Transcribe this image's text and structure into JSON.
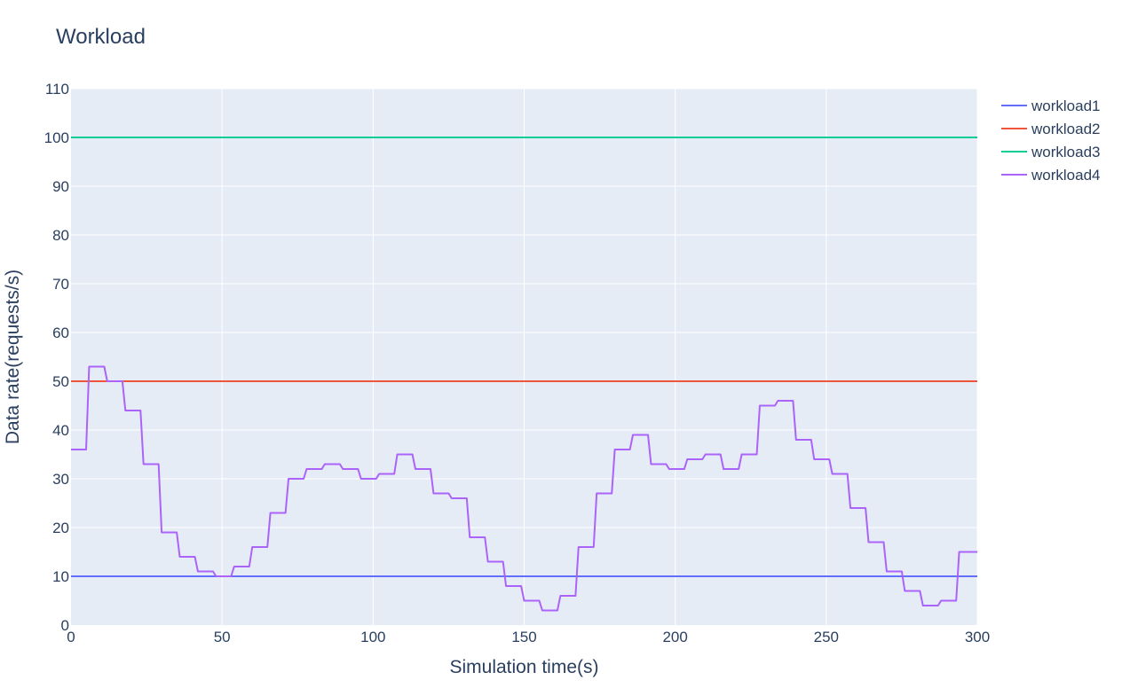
{
  "chart_data": {
    "type": "line",
    "title": "Workload",
    "xlabel": "Simulation time(s)",
    "ylabel": "Data rate(requests/s)",
    "xlim": [
      0,
      300
    ],
    "ylim": [
      0,
      110
    ],
    "x_ticks": [
      0,
      50,
      100,
      150,
      200,
      250,
      300
    ],
    "y_ticks": [
      0,
      10,
      20,
      30,
      40,
      50,
      60,
      70,
      80,
      90,
      100,
      110
    ],
    "grid": true,
    "legend_position": "top-right",
    "plot_background": "#e5ecf6",
    "series": [
      {
        "name": "workload1",
        "color": "#636efa",
        "x": [
          0,
          300
        ],
        "y": [
          10,
          10
        ]
      },
      {
        "name": "workload2",
        "color": "#ef553b",
        "x": [
          0,
          300
        ],
        "y": [
          50,
          50
        ]
      },
      {
        "name": "workload3",
        "color": "#00cc96",
        "x": [
          0,
          300
        ],
        "y": [
          100,
          100
        ]
      },
      {
        "name": "workload4",
        "color": "#ab63fa",
        "x": [
          0,
          5,
          6,
          11,
          12,
          17,
          18,
          23,
          24,
          29,
          30,
          35,
          36,
          41,
          42,
          47,
          48,
          53,
          54,
          59,
          60,
          65,
          66,
          71,
          72,
          77,
          78,
          83,
          84,
          89,
          90,
          95,
          96,
          101,
          102,
          107,
          108,
          113,
          114,
          119,
          120,
          125,
          126,
          131,
          132,
          137,
          138,
          143,
          144,
          149,
          150,
          155,
          156,
          161,
          162,
          167,
          168,
          173,
          174,
          179,
          180,
          185,
          186,
          191,
          192,
          197,
          198,
          203,
          204,
          209,
          210,
          215,
          216,
          221,
          222,
          227,
          228,
          233,
          234,
          239,
          240,
          245,
          246,
          251,
          252,
          257,
          258,
          263,
          264,
          269,
          270,
          275,
          276,
          281,
          282,
          287,
          288,
          293,
          294,
          300
        ],
        "y": [
          36,
          36,
          53,
          53,
          50,
          50,
          44,
          44,
          33,
          33,
          19,
          19,
          14,
          14,
          11,
          11,
          10,
          10,
          12,
          12,
          16,
          16,
          23,
          23,
          30,
          30,
          32,
          32,
          33,
          33,
          32,
          32,
          30,
          30,
          31,
          31,
          35,
          35,
          32,
          32,
          27,
          27,
          26,
          26,
          18,
          18,
          13,
          13,
          8,
          8,
          5,
          5,
          3,
          3,
          6,
          6,
          16,
          16,
          27,
          27,
          36,
          36,
          39,
          39,
          33,
          33,
          32,
          32,
          34,
          34,
          35,
          35,
          32,
          32,
          35,
          35,
          45,
          45,
          46,
          46,
          38,
          38,
          34,
          34,
          31,
          31,
          24,
          24,
          17,
          17,
          11,
          11,
          7,
          7,
          4,
          4,
          5,
          5,
          15,
          15
        ]
      }
    ]
  }
}
